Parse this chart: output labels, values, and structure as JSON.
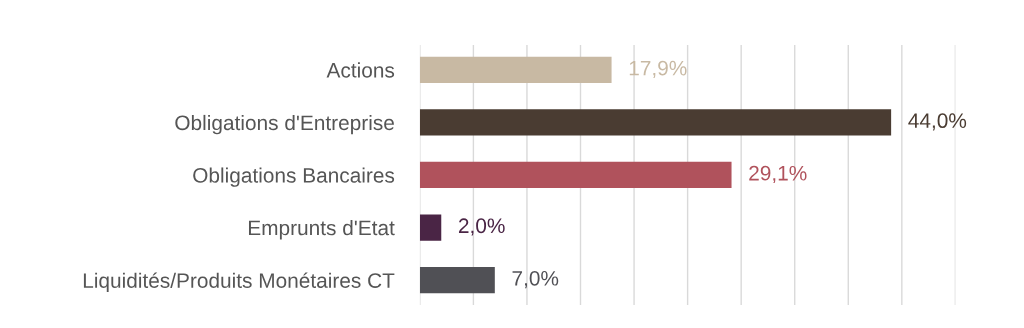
{
  "chart_data": {
    "type": "bar",
    "orientation": "horizontal",
    "categories": [
      "Actions",
      "Obligations d'Entreprise",
      "Obligations Bancaires",
      "Emprunts d'Etat",
      "Liquidités/Produits Monétaires CT"
    ],
    "values": [
      17.9,
      44.0,
      29.1,
      2.0,
      7.0
    ],
    "colors": [
      "#c8b9a3",
      "#4a3c32",
      "#b0525c",
      "#4a2545",
      "#505055"
    ],
    "value_labels": [
      "17,9%",
      "44,0%",
      "29,1%",
      "2,0%",
      "7,0%"
    ],
    "xlim": [
      0,
      50
    ],
    "xticks": [
      {
        "value": 0,
        "label": null
      },
      {
        "value": 5,
        "label": null
      },
      {
        "value": 10,
        "label": null
      },
      {
        "value": 15,
        "label": null
      },
      {
        "value": 20,
        "label": null
      },
      {
        "value": 25,
        "label": null
      },
      {
        "value": 30,
        "label": null
      },
      {
        "value": 35,
        "label": null
      },
      {
        "value": 40,
        "label": null
      },
      {
        "value": 45,
        "label": null
      },
      {
        "value": 50,
        "label": null
      }
    ],
    "tick_labels": "y",
    "grid": "x",
    "legend": false
  }
}
